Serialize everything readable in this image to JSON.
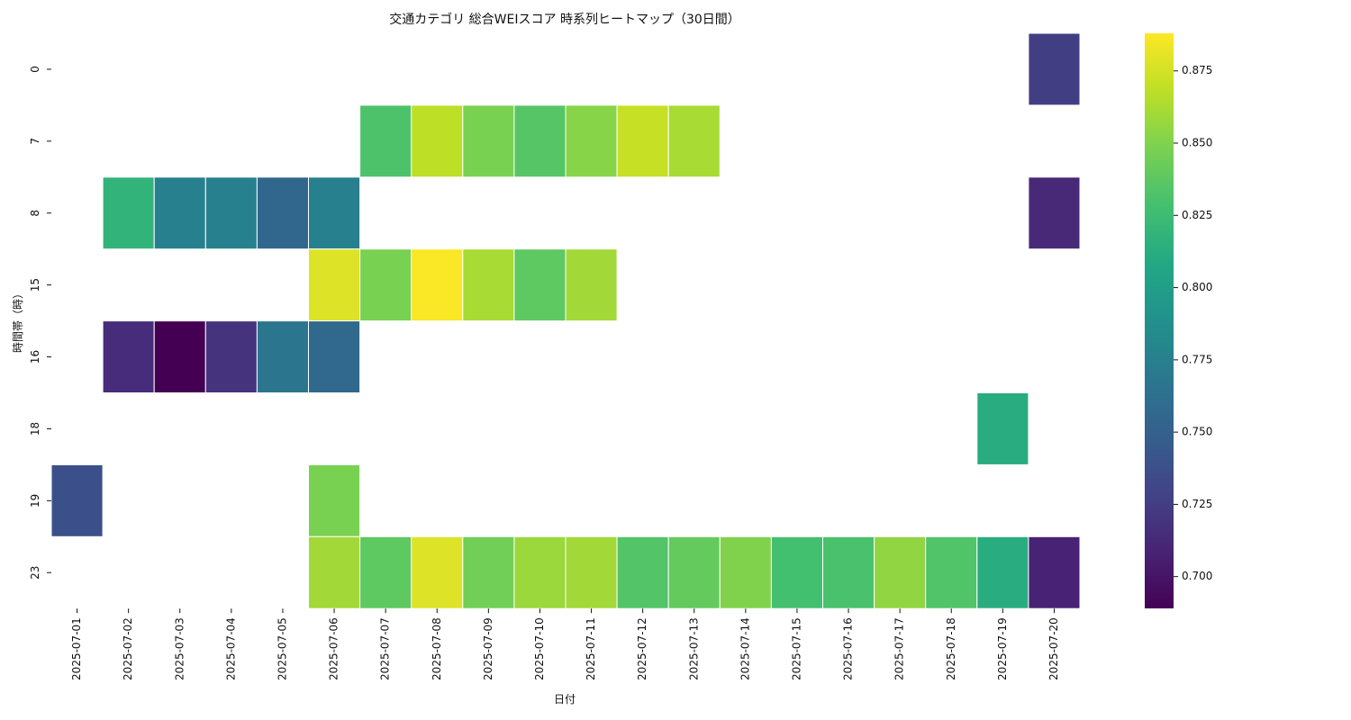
{
  "chart_data": {
    "type": "heatmap",
    "title": "交通カテゴリ 総合WEIスコア 時系列ヒートマップ（30日間）",
    "xlabel": "日付",
    "ylabel": "時間帯（時）",
    "x": [
      "2025-07-01",
      "2025-07-02",
      "2025-07-03",
      "2025-07-04",
      "2025-07-05",
      "2025-07-06",
      "2025-07-07",
      "2025-07-08",
      "2025-07-09",
      "2025-07-10",
      "2025-07-11",
      "2025-07-12",
      "2025-07-13",
      "2025-07-14",
      "2025-07-15",
      "2025-07-16",
      "2025-07-17",
      "2025-07-18",
      "2025-07-19",
      "2025-07-20"
    ],
    "y": [
      "0",
      "7",
      "8",
      "15",
      "16",
      "18",
      "19",
      "23"
    ],
    "values": [
      [
        null,
        null,
        null,
        null,
        null,
        null,
        null,
        null,
        null,
        null,
        null,
        null,
        null,
        null,
        null,
        null,
        null,
        null,
        null,
        0.725
      ],
      [
        null,
        null,
        null,
        null,
        null,
        null,
        0.832,
        0.868,
        0.848,
        0.835,
        0.852,
        0.871,
        0.862,
        null,
        null,
        null,
        null,
        null,
        null,
        null
      ],
      [
        null,
        0.818,
        0.775,
        0.775,
        0.755,
        0.775,
        null,
        null,
        null,
        null,
        null,
        null,
        null,
        null,
        null,
        null,
        null,
        null,
        null,
        0.712
      ],
      [
        null,
        null,
        null,
        null,
        null,
        0.878,
        0.848,
        0.887,
        0.862,
        0.838,
        0.86,
        null,
        null,
        null,
        null,
        null,
        null,
        null,
        null,
        null
      ],
      [
        null,
        0.714,
        0.689,
        0.718,
        0.766,
        0.756,
        null,
        null,
        null,
        null,
        null,
        null,
        null,
        null,
        null,
        null,
        null,
        null,
        null,
        null
      ],
      [
        null,
        null,
        null,
        null,
        null,
        null,
        null,
        null,
        null,
        null,
        null,
        null,
        null,
        null,
        null,
        null,
        null,
        null,
        0.812,
        null
      ],
      [
        0.738,
        null,
        null,
        null,
        null,
        0.848,
        null,
        null,
        null,
        null,
        null,
        null,
        null,
        null,
        null,
        null,
        null,
        null,
        null,
        null
      ],
      [
        null,
        null,
        null,
        null,
        null,
        0.86,
        0.838,
        0.878,
        0.845,
        0.858,
        0.86,
        0.834,
        0.84,
        0.85,
        0.828,
        0.83,
        0.855,
        0.833,
        0.812,
        0.708
      ]
    ],
    "colorbar": {
      "colormap": "viridis",
      "vmin": 0.689,
      "vmax": 0.888,
      "ticks": [
        "0.700",
        "0.725",
        "0.750",
        "0.775",
        "0.800",
        "0.825",
        "0.850",
        "0.875"
      ]
    },
    "missing_color": "#ffffff",
    "grid": false,
    "legend": "colorbar-right"
  }
}
